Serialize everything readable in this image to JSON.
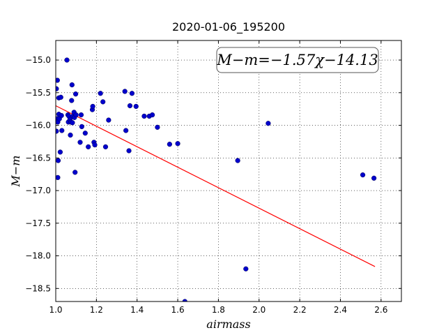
{
  "chart_data": {
    "type": "scatter",
    "title": "2020-01-06_195200",
    "xlabel": "airmass",
    "ylabel": "M−m",
    "xlim": [
      1.0,
      2.7
    ],
    "ylim": [
      -18.7,
      -14.7
    ],
    "y_inverted": true,
    "grid": true,
    "x_ticks": [
      "1.0",
      "1.2",
      "1.4",
      "1.6",
      "1.8",
      "2.0",
      "2.2",
      "2.4",
      "2.6"
    ],
    "x_tick_values": [
      1.0,
      1.2,
      1.4,
      1.6,
      1.8,
      2.0,
      2.2,
      2.4,
      2.6
    ],
    "y_ticks": [
      "−15.0",
      "−15.5",
      "−16.0",
      "−16.5",
      "−17.0",
      "−17.5",
      "−18.0",
      "−18.5"
    ],
    "y_tick_values": [
      -15.0,
      -15.5,
      -16.0,
      -16.5,
      -17.0,
      -17.5,
      -18.0,
      -18.5
    ],
    "annotation": "M−m=−1.57χ−14.13",
    "fit": {
      "slope": -1.57,
      "intercept": -14.13,
      "x_range": [
        1.0,
        2.57
      ],
      "color": "#ff0000"
    },
    "point_color": "#0000cc",
    "points": [
      [
        1.003,
        -15.44
      ],
      [
        1.003,
        -16.09
      ],
      [
        1.005,
        -15.9
      ],
      [
        1.008,
        -15.31
      ],
      [
        1.01,
        -15.95
      ],
      [
        1.01,
        -16.8
      ],
      [
        1.012,
        -16.54
      ],
      [
        1.015,
        -15.58
      ],
      [
        1.015,
        -15.83
      ],
      [
        1.018,
        -15.9
      ],
      [
        1.022,
        -16.41
      ],
      [
        1.025,
        -15.57
      ],
      [
        1.028,
        -15.85
      ],
      [
        1.03,
        -16.08
      ],
      [
        1.055,
        -15.0
      ],
      [
        1.06,
        -15.84
      ],
      [
        1.062,
        -15.95
      ],
      [
        1.065,
        -15.86
      ],
      [
        1.07,
        -15.91
      ],
      [
        1.072,
        -16.15
      ],
      [
        1.075,
        -15.95
      ],
      [
        1.078,
        -15.62
      ],
      [
        1.08,
        -15.38
      ],
      [
        1.082,
        -15.96
      ],
      [
        1.085,
        -15.86
      ],
      [
        1.09,
        -15.8
      ],
      [
        1.092,
        -15.88
      ],
      [
        1.095,
        -16.72
      ],
      [
        1.098,
        -15.52
      ],
      [
        1.1,
        -15.84
      ],
      [
        1.12,
        -16.26
      ],
      [
        1.125,
        -15.84
      ],
      [
        1.128,
        -16.02
      ],
      [
        1.145,
        -16.12
      ],
      [
        1.16,
        -16.33
      ],
      [
        1.18,
        -15.76
      ],
      [
        1.182,
        -15.71
      ],
      [
        1.188,
        -16.26
      ],
      [
        1.192,
        -16.3
      ],
      [
        1.22,
        -15.51
      ],
      [
        1.232,
        -15.64
      ],
      [
        1.245,
        -16.33
      ],
      [
        1.26,
        -15.92
      ],
      [
        1.34,
        -15.48
      ],
      [
        1.345,
        -16.08
      ],
      [
        1.36,
        -16.39
      ],
      [
        1.365,
        -15.7
      ],
      [
        1.375,
        -15.51
      ],
      [
        1.395,
        -15.71
      ],
      [
        1.435,
        -15.86
      ],
      [
        1.46,
        -15.86
      ],
      [
        1.475,
        -15.84
      ],
      [
        1.5,
        -16.03
      ],
      [
        1.56,
        -16.29
      ],
      [
        1.6,
        -16.28
      ],
      [
        1.635,
        -18.7
      ],
      [
        1.895,
        -16.54
      ],
      [
        1.935,
        -18.2
      ],
      [
        2.045,
        -15.97
      ],
      [
        2.51,
        -16.76
      ],
      [
        2.565,
        -16.81
      ]
    ]
  }
}
